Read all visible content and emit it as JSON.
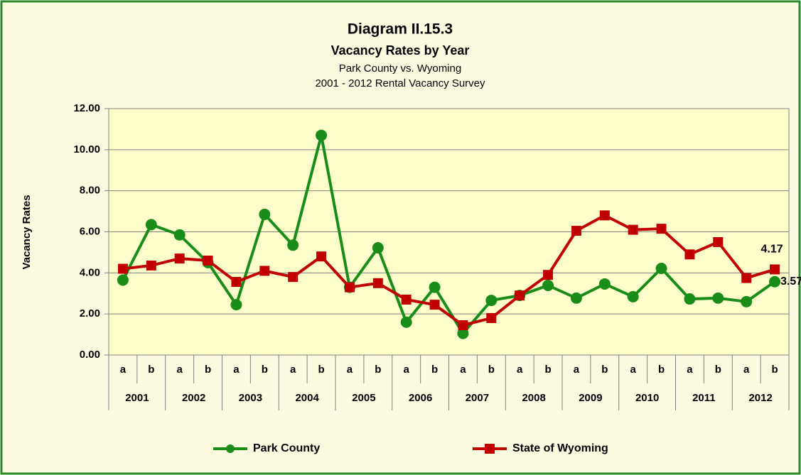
{
  "chart_data": {
    "type": "line",
    "title": "Diagram II.15.3",
    "subtitle": "Vacancy Rates by Year",
    "subtitle_lines": [
      "Park County vs. Wyoming",
      "2001 - 2012 Rental Vacancy Survey"
    ],
    "y_label": "Vacancy Rates",
    "categories": [
      "a",
      "b",
      "a",
      "b",
      "a",
      "b",
      "a",
      "b",
      "a",
      "b",
      "a",
      "b",
      "a",
      "b",
      "a",
      "b",
      "a",
      "b",
      "a",
      "b",
      "a",
      "b",
      "a",
      "b"
    ],
    "group_labels": [
      "2001",
      "2002",
      "2003",
      "2004",
      "2005",
      "2006",
      "2007",
      "2008",
      "2009",
      "2010",
      "2011",
      "2012"
    ],
    "series": [
      {
        "name": "Park County",
        "color": "#1a8c1a",
        "marker": "circle",
        "values": [
          3.65,
          6.35,
          5.85,
          4.5,
          2.45,
          6.85,
          5.35,
          10.7,
          3.3,
          5.22,
          1.6,
          3.3,
          1.05,
          2.66,
          2.9,
          3.39,
          2.77,
          3.46,
          2.84,
          4.22,
          2.73,
          2.77,
          2.6,
          3.57
        ],
        "value_labels": [
          null,
          null,
          null,
          null,
          null,
          null,
          null,
          null,
          null,
          null,
          null,
          null,
          null,
          null,
          null,
          null,
          null,
          null,
          null,
          null,
          null,
          null,
          null,
          "3.57"
        ]
      },
      {
        "name": "State of Wyoming",
        "color": "#c00000",
        "marker": "square",
        "values": [
          4.2,
          4.36,
          4.7,
          4.6,
          3.56,
          4.1,
          3.8,
          4.8,
          3.3,
          3.5,
          2.7,
          2.45,
          1.45,
          1.8,
          2.9,
          3.9,
          6.05,
          6.8,
          6.1,
          6.15,
          4.9,
          5.5,
          3.75,
          4.17
        ],
        "value_labels": [
          null,
          null,
          null,
          null,
          null,
          null,
          null,
          null,
          null,
          null,
          null,
          null,
          null,
          null,
          null,
          null,
          null,
          null,
          null,
          null,
          null,
          null,
          null,
          "4.17"
        ]
      }
    ],
    "ylim": [
      0,
      12
    ],
    "yticks": [
      {
        "value": 0,
        "label": "0.00"
      },
      {
        "value": 2,
        "label": "2.00"
      },
      {
        "value": 4,
        "label": "4.00"
      },
      {
        "value": 6,
        "label": "6.00"
      },
      {
        "value": 8,
        "label": "8.00"
      },
      {
        "value": 10,
        "label": "10.00"
      },
      {
        "value": 12,
        "label": "12.00"
      }
    ],
    "grid": true,
    "legend": "bottom"
  }
}
